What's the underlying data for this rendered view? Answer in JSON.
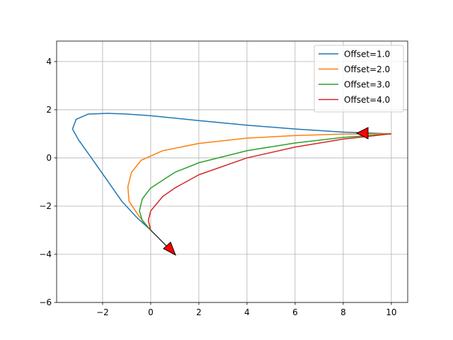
{
  "chart_data": {
    "type": "line",
    "series": [
      {
        "name": "Offset=1.0",
        "color": "#1f77b4",
        "x": [
          0,
          -0.6,
          -1.2,
          -1.9,
          -2.5,
          -3.0,
          -3.25,
          -3.1,
          -2.6,
          -1.8,
          -1,
          0,
          2,
          4,
          6,
          8,
          10
        ],
        "values": [
          -3,
          -2.45,
          -1.8,
          -0.8,
          0.05,
          0.75,
          1.2,
          1.6,
          1.82,
          1.85,
          1.82,
          1.75,
          1.55,
          1.36,
          1.2,
          1.07,
          1.0
        ]
      },
      {
        "name": "Offset=2.0",
        "color": "#ff7f0e",
        "x": [
          0,
          -0.5,
          -0.9,
          -0.95,
          -0.8,
          -0.4,
          0.5,
          2,
          4,
          6,
          8,
          10
        ],
        "values": [
          -3,
          -2.4,
          -1.8,
          -1.2,
          -0.6,
          -0.1,
          0.3,
          0.6,
          0.82,
          0.93,
          0.99,
          1.0
        ]
      },
      {
        "name": "Offset=3.0",
        "color": "#2ca02c",
        "x": [
          0,
          -0.35,
          -0.47,
          -0.35,
          0,
          1,
          2,
          4,
          6,
          8,
          10
        ],
        "values": [
          -3,
          -2.6,
          -2.2,
          -1.7,
          -1.25,
          -0.6,
          -0.2,
          0.3,
          0.62,
          0.85,
          1.0
        ]
      },
      {
        "name": "Offset=4.0",
        "color": "#d62728",
        "x": [
          0,
          -0.1,
          0,
          0.5,
          1,
          2,
          4,
          6,
          8,
          10
        ],
        "values": [
          -3,
          -2.6,
          -2.2,
          -1.6,
          -1.25,
          -0.7,
          0,
          0.45,
          0.78,
          1.0
        ]
      }
    ],
    "xlim": [
      -3.91,
      10.68
    ],
    "ylim": [
      -6,
      4.85
    ],
    "xticks": [
      {
        "value": -2,
        "label": "−2"
      },
      0,
      2,
      4,
      6,
      8,
      10
    ],
    "yticks": [
      {
        "value": -6,
        "label": "−6"
      },
      {
        "value": -4,
        "label": "−4"
      },
      {
        "value": -2,
        "label": "−2"
      },
      0,
      2,
      4
    ],
    "grid": true,
    "legend": "upper right"
  }
}
